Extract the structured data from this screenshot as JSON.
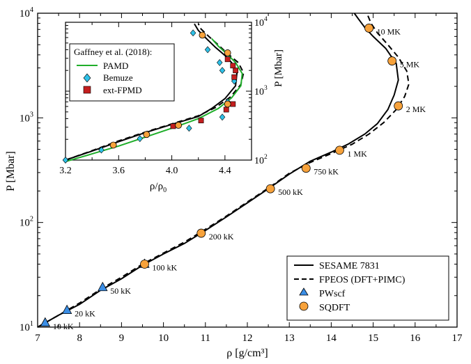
{
  "chart_data": [
    {
      "type": "line",
      "title": "",
      "xlabel": "ρ [g/cm³]",
      "ylabel": "P [Mbar]",
      "xlim": [
        7,
        17
      ],
      "ylim": [
        10,
        10000
      ],
      "yscale": "log",
      "xticks": [
        "7",
        "8",
        "9",
        "10",
        "11",
        "12",
        "13",
        "14",
        "15",
        "16",
        "17"
      ],
      "yticks": [
        {
          "value": 10,
          "base": "10",
          "exp": "1"
        },
        {
          "value": 100,
          "base": "10",
          "exp": "2"
        },
        {
          "value": 1000,
          "base": "10",
          "exp": "3"
        },
        {
          "value": 10000,
          "base": "10",
          "exp": "4"
        }
      ],
      "legend_position": "bottom-right",
      "series": [
        {
          "name": "SESAME 7831",
          "style": "solid",
          "color": "#000000",
          "points": [
            [
              7.0,
              10
            ],
            [
              7.5,
              13
            ],
            [
              8.0,
              16.5
            ],
            [
              8.5,
              22.5
            ],
            [
              9.0,
              29
            ],
            [
              9.5,
              39
            ],
            [
              10.0,
              50
            ],
            [
              10.5,
              63
            ],
            [
              11.0,
              84
            ],
            [
              11.5,
              113
            ],
            [
              12.0,
              154
            ],
            [
              12.5,
              210
            ],
            [
              13.0,
              290
            ],
            [
              13.5,
              385
            ],
            [
              14.0,
              470
            ],
            [
              14.4,
              560
            ],
            [
              14.8,
              700
            ],
            [
              15.1,
              880
            ],
            [
              15.35,
              1200
            ],
            [
              15.5,
              1650
            ],
            [
              15.6,
              2300
            ],
            [
              15.55,
              3300
            ],
            [
              15.3,
              4600
            ],
            [
              15.0,
              6000
            ],
            [
              14.8,
              7300
            ],
            [
              14.65,
              8800
            ],
            [
              14.55,
              10000
            ]
          ]
        },
        {
          "name": "FPEOS (DFT+PIMC)",
          "style": "dashed",
          "color": "#000000",
          "points": [
            [
              7.0,
              10
            ],
            [
              7.5,
              13
            ],
            [
              8.0,
              17
            ],
            [
              8.5,
              23
            ],
            [
              9.0,
              30
            ],
            [
              9.5,
              40
            ],
            [
              10.0,
              51
            ],
            [
              10.5,
              65
            ],
            [
              11.0,
              86
            ],
            [
              11.5,
              115
            ],
            [
              12.0,
              157
            ],
            [
              12.5,
              213
            ],
            [
              13.0,
              295
            ],
            [
              13.5,
              375
            ],
            [
              14.0,
              455
            ],
            [
              14.5,
              560
            ],
            [
              14.9,
              700
            ],
            [
              15.25,
              900
            ],
            [
              15.55,
              1200
            ],
            [
              15.75,
              1600
            ],
            [
              15.85,
              2100
            ],
            [
              15.8,
              2800
            ],
            [
              15.6,
              3800
            ],
            [
              15.35,
              5000
            ],
            [
              15.1,
              6500
            ],
            [
              14.95,
              8000
            ],
            [
              14.85,
              10000
            ]
          ]
        }
      ],
      "markers": [
        {
          "name": "PWscf",
          "shape": "triangle",
          "color": "#3a8ee6",
          "points": [
            [
              7.18,
              11
            ],
            [
              7.7,
              14.5
            ],
            [
              8.55,
              24
            ],
            [
              9.55,
              40
            ]
          ]
        },
        {
          "name": "SQDFT",
          "shape": "circle",
          "color": "#f7a23b",
          "points": [
            [
              9.55,
              40
            ],
            [
              10.9,
              79
            ],
            [
              12.55,
              210
            ],
            [
              13.4,
              330
            ],
            [
              14.2,
              490
            ],
            [
              15.6,
              1300
            ],
            [
              15.45,
              3500
            ],
            [
              14.9,
              7200
            ]
          ]
        }
      ],
      "annotations": [
        {
          "text": "10 kK",
          "x": 7.18,
          "y": 11
        },
        {
          "text": "20 kK",
          "x": 7.7,
          "y": 14.5
        },
        {
          "text": "50 kK",
          "x": 8.55,
          "y": 24
        },
        {
          "text": "100 kK",
          "x": 9.55,
          "y": 40
        },
        {
          "text": "200 kK",
          "x": 10.9,
          "y": 79
        },
        {
          "text": "500 kK",
          "x": 12.55,
          "y": 210
        },
        {
          "text": "750 kK",
          "x": 13.4,
          "y": 330
        },
        {
          "text": "1 MK",
          "x": 14.2,
          "y": 490
        },
        {
          "text": "2 MK",
          "x": 15.6,
          "y": 1300
        },
        {
          "text": "5 MK",
          "x": 15.45,
          "y": 3500
        },
        {
          "text": "10 MK",
          "x": 14.9,
          "y": 7200
        }
      ]
    },
    {
      "type": "line",
      "title": "",
      "xlabel": "ρ/ρ₀",
      "xlabel_base": "ρ/ρ",
      "xlabel_sub": "0",
      "ylabel": "P [Mbar]",
      "yaxis_side": "right",
      "xlim": [
        3.2,
        4.6
      ],
      "ylim": [
        100,
        10000
      ],
      "yscale": "log",
      "xticks": [
        "3.2",
        "3.6",
        "4.0",
        "4.4"
      ],
      "yticks": [
        {
          "value": 100,
          "base": "10",
          "exp": "2"
        },
        {
          "value": 1000,
          "base": "10",
          "exp": "3"
        },
        {
          "value": 10000,
          "base": "10",
          "exp": "4"
        }
      ],
      "legend_title": "Gaffney et al. (2018):",
      "legend_position": "top-left",
      "series": [
        {
          "name": "",
          "style": "solid",
          "color": "#000000",
          "points": [
            [
              3.2,
              100
            ],
            [
              3.4,
              135
            ],
            [
              3.6,
              185
            ],
            [
              3.8,
              250
            ],
            [
              4.0,
              330
            ],
            [
              4.2,
              430
            ],
            [
              4.3,
              560
            ],
            [
              4.4,
              780
            ],
            [
              4.48,
              1200
            ],
            [
              4.49,
              1800
            ],
            [
              4.45,
              2600
            ],
            [
              4.4,
              3300
            ],
            [
              4.33,
              4300
            ],
            [
              4.26,
              5800
            ],
            [
              4.2,
              7600
            ],
            [
              4.17,
              9500
            ]
          ]
        },
        {
          "name": "",
          "style": "dashed",
          "color": "#000000",
          "points": [
            [
              3.2,
              100
            ],
            [
              3.4,
              137
            ],
            [
              3.6,
              190
            ],
            [
              3.8,
              255
            ],
            [
              4.0,
              335
            ],
            [
              4.2,
              440
            ],
            [
              4.33,
              580
            ],
            [
              4.44,
              820
            ],
            [
              4.52,
              1250
            ],
            [
              4.54,
              1850
            ],
            [
              4.5,
              2600
            ],
            [
              4.42,
              3500
            ],
            [
              4.35,
              4700
            ],
            [
              4.28,
              6200
            ],
            [
              4.22,
              8000
            ],
            [
              4.2,
              9500
            ]
          ]
        },
        {
          "name": "PAMD",
          "style": "solid",
          "color": "#1fae2a",
          "points": [
            [
              3.2,
              95
            ],
            [
              3.4,
              123
            ],
            [
              3.6,
              160
            ],
            [
              3.8,
              215
            ],
            [
              4.0,
              290
            ],
            [
              4.2,
              400
            ],
            [
              4.35,
              560
            ],
            [
              4.45,
              800
            ],
            [
              4.52,
              1200
            ],
            [
              4.53,
              1800
            ],
            [
              4.48,
              2600
            ],
            [
              4.42,
              3400
            ],
            [
              4.35,
              4500
            ],
            [
              4.3,
              5800
            ]
          ]
        }
      ],
      "markers": [
        {
          "name": "Bemuze",
          "shape": "diamond",
          "color": "#2ec1e8",
          "points": [
            [
              3.2,
              100
            ],
            [
              3.47,
              140
            ],
            [
              3.76,
              205
            ],
            [
              4.13,
              290
            ],
            [
              4.38,
              420
            ],
            [
              4.42,
              700
            ],
            [
              4.47,
              1400
            ],
            [
              4.38,
              2000
            ],
            [
              4.36,
              2600
            ],
            [
              4.27,
              4000
            ],
            [
              4.16,
              7000
            ]
          ]
        },
        {
          "name": "ext-FPMD",
          "shape": "square",
          "color": "#c41e1e",
          "points": [
            [
              4.01,
              310
            ],
            [
              4.22,
              375
            ],
            [
              4.41,
              540
            ],
            [
              4.46,
              650
            ],
            [
              4.47,
              1600
            ],
            [
              4.48,
              2000
            ],
            [
              4.46,
              2350
            ],
            [
              4.42,
              2900
            ]
          ]
        },
        {
          "name": "",
          "shape": "circle",
          "color": "#f7a23b",
          "points": [
            [
              3.56,
              165
            ],
            [
              3.81,
              235
            ],
            [
              4.05,
              320
            ],
            [
              4.42,
              650
            ],
            [
              4.42,
              3600
            ],
            [
              4.23,
              6500
            ]
          ]
        }
      ]
    }
  ]
}
